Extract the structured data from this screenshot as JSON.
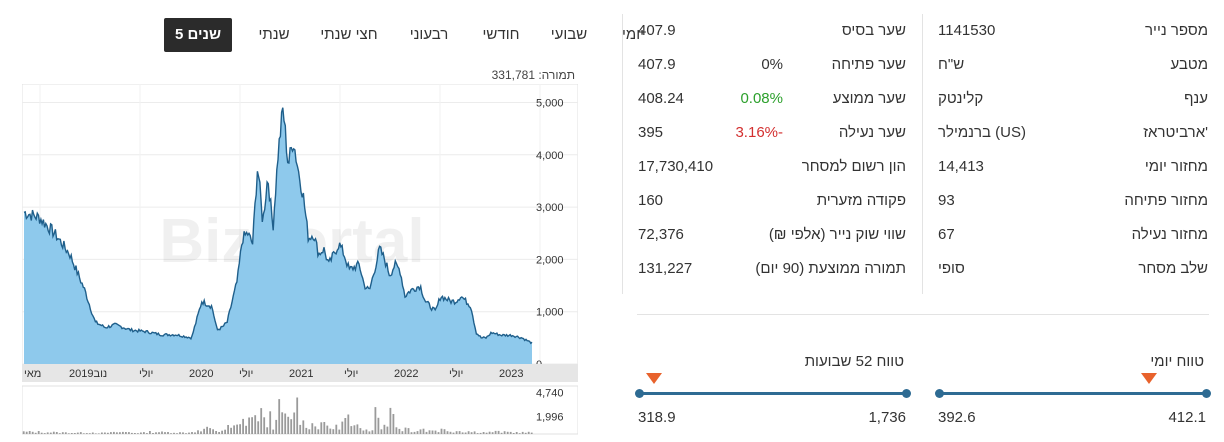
{
  "security": {
    "col1": [
      {
        "label": "מספר נייר",
        "value": "1141530"
      },
      {
        "label": "מטבע",
        "value": "ש\"ח"
      },
      {
        "label": "ענף",
        "value": "קלינטק"
      },
      {
        "label": "ארביטראז'",
        "value": "ברנמילר (US)"
      },
      {
        "label": "מחזור יומי",
        "value": "14,413"
      },
      {
        "label": "מחזור פתיחה",
        "value": "93"
      },
      {
        "label": "מחזור נעילה",
        "value": "67"
      },
      {
        "label": "שלב מסחר",
        "value": "סופי"
      }
    ],
    "col2": [
      {
        "label": "שער בסיס",
        "value": "407.9",
        "change": ""
      },
      {
        "label": "שער פתיחה",
        "value": "407.9",
        "change": "0%"
      },
      {
        "label": "שער ממוצע",
        "value": "408.24",
        "change": "0.08%"
      },
      {
        "label": "שער נעילה",
        "value": "395",
        "change": "3.16%-"
      },
      {
        "label": "הון רשום למסחר",
        "value": "17,730,410",
        "change": ""
      },
      {
        "label": "פקודה מזערית",
        "value": "160",
        "change": ""
      },
      {
        "label": "שווי שוק נייר (אלפי ₪)",
        "value": "72,376",
        "change": ""
      },
      {
        "label": "תמורה ממוצעת (90 יום)",
        "value": "131,227",
        "change": ""
      }
    ]
  },
  "ranges": {
    "daily": {
      "title": "טווח יומי",
      "low": "392.6",
      "high": "412.1",
      "marker_fraction": 0.78
    },
    "weekly52": {
      "title": "טווח 52 שבועות",
      "low": "318.9",
      "high": "1,736",
      "marker_fraction": 0.06
    }
  },
  "tabs": [
    "יומי",
    "שבועי",
    "חודשי",
    "רבעוני",
    "חצי שנתי",
    "שנתי",
    "5 שנים"
  ],
  "active_tab": "5 שנים",
  "turnover": {
    "label": "תמורה:",
    "value": "331,781"
  },
  "watermark": "Bizportal",
  "colors": {
    "area": "#8ec9ec",
    "line": "#1f5f8b",
    "accent": "#e8622c",
    "range_line": "#2e6b93",
    "volume": "#9a9a9a"
  },
  "chart_data": {
    "type": "area",
    "y_ticks": [
      "5,000",
      "4,000",
      "3,000",
      "2,000",
      "1,000",
      "0"
    ],
    "ylim": [
      0,
      5200
    ],
    "x_ticks": [
      "מאי",
      "2019נוב",
      "יולי",
      "2020",
      "יולי",
      "2021",
      "יולי",
      "2022",
      "יולי",
      "2023"
    ],
    "x_tick_t": [
      0.0,
      0.09,
      0.23,
      0.33,
      0.43,
      0.53,
      0.64,
      0.74,
      0.85,
      0.95
    ],
    "t": [
      0.0,
      0.03,
      0.06,
      0.09,
      0.12,
      0.14,
      0.16,
      0.18,
      0.21,
      0.24,
      0.27,
      0.3,
      0.33,
      0.35,
      0.37,
      0.38,
      0.39,
      0.4,
      0.42,
      0.43,
      0.44,
      0.45,
      0.46,
      0.47,
      0.48,
      0.49,
      0.5,
      0.51,
      0.52,
      0.53,
      0.54,
      0.55,
      0.56,
      0.57,
      0.58,
      0.59,
      0.6,
      0.62,
      0.63,
      0.64,
      0.66,
      0.67,
      0.68,
      0.69,
      0.7,
      0.71,
      0.72,
      0.73,
      0.74,
      0.75,
      0.76,
      0.78,
      0.79,
      0.8,
      0.81,
      0.82,
      0.84,
      0.85,
      0.86,
      0.88,
      0.89,
      0.9,
      0.91,
      0.92,
      0.94,
      0.96,
      0.98,
      1.0
    ],
    "values": [
      2900,
      2800,
      2500,
      2100,
      1400,
      800,
      700,
      750,
      650,
      620,
      560,
      560,
      500,
      1200,
      1100,
      650,
      700,
      800,
      1600,
      2400,
      2500,
      2300,
      3800,
      2700,
      3600,
      2600,
      4000,
      4900,
      3800,
      4300,
      3700,
      3200,
      2400,
      2500,
      2100,
      2200,
      1900,
      2300,
      2100,
      1800,
      1900,
      1500,
      1400,
      1800,
      2200,
      2000,
      1700,
      1900,
      1800,
      1300,
      1400,
      1500,
      1200,
      1100,
      1000,
      1300,
      1200,
      1200,
      1300,
      1100,
      600,
      500,
      500,
      600,
      550,
      550,
      500,
      400
    ],
    "volume_ticks": [
      "4,740",
      "1,996"
    ],
    "volume_max": 5000,
    "volume": [
      300,
      250,
      200,
      180,
      220,
      150,
      200,
      260,
      180,
      300,
      240,
      200,
      400,
      700,
      500,
      350,
      600,
      900,
      1100,
      1800,
      2400,
      2000,
      3000,
      1600,
      2600,
      1400,
      3300,
      2200,
      1800,
      4100,
      2600,
      1500,
      1300,
      1200,
      1900,
      1100,
      900,
      1400,
      2200,
      900,
      700,
      1200,
      800,
      3600,
      1300,
      1000,
      4700,
      900,
      700,
      800,
      500,
      700,
      450,
      650,
      500,
      600,
      400,
      450,
      380,
      300,
      280,
      250,
      240,
      320,
      260,
      230,
      220,
      200
    ]
  }
}
